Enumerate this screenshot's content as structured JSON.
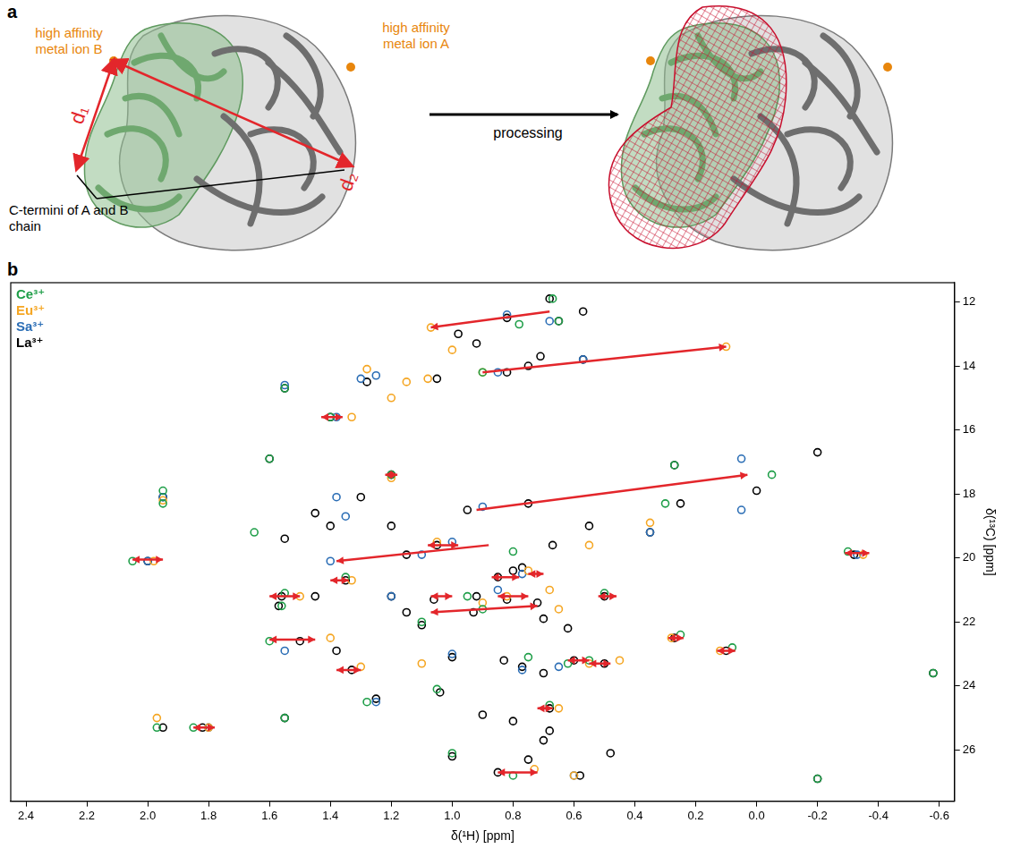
{
  "panel_a": {
    "label": "a",
    "metal_ion_B": "high affinity metal ion B",
    "metal_ion_A": "high affinity metal ion A",
    "distances": [
      "d₁",
      "d₂"
    ],
    "c_termini": "C-termini of A and B chain",
    "process": "processing"
  },
  "panel_b_label": "b",
  "chart_data": {
    "type": "scatter",
    "x_label": "δ(¹H) [ppm]",
    "y_label": "δ(¹³C) [ppm]",
    "xlim": [
      2.45,
      -0.65
    ],
    "ylim": [
      27.6,
      11.4
    ],
    "xticks": [
      2.4,
      2.2,
      {
        "value": 2,
        "label": "2.0"
      },
      1.8,
      1.6,
      1.4,
      1.2,
      {
        "value": 1,
        "label": "1.0"
      },
      0.8,
      0.6,
      0.4,
      0.2,
      {
        "value": 0,
        "label": "0.0"
      },
      -0.2,
      -0.4,
      -0.6
    ],
    "yticks": [
      12,
      14,
      16,
      18,
      20,
      22,
      24,
      26
    ],
    "grid": false,
    "legend": "upper left",
    "series": [
      {
        "name": "Ce³⁺",
        "color": "#1e9e48",
        "marker": "circle",
        "values": [
          [
            0.65,
            12.6
          ],
          [
            0.67,
            11.9
          ],
          [
            0.78,
            12.7
          ],
          [
            0.9,
            14.2
          ],
          [
            1.55,
            14.7
          ],
          [
            1.4,
            15.6
          ],
          [
            1.6,
            16.9
          ],
          [
            1.2,
            17.4
          ],
          [
            0.27,
            17.1
          ],
          [
            -0.05,
            17.4
          ],
          [
            1.95,
            17.9
          ],
          [
            1.65,
            19.2
          ],
          [
            2.05,
            20.1
          ],
          [
            1.35,
            20.6
          ],
          [
            0.8,
            19.8
          ],
          [
            1.55,
            21.1
          ],
          [
            1.56,
            21.5
          ],
          [
            1.6,
            22.6
          ],
          [
            0.95,
            21.2
          ],
          [
            0.9,
            21.6
          ],
          [
            0.5,
            21.1
          ],
          [
            1.1,
            22.0
          ],
          [
            0.75,
            23.1
          ],
          [
            0.55,
            23.2
          ],
          [
            0.68,
            24.6
          ],
          [
            1.85,
            25.3
          ],
          [
            1.97,
            25.3
          ],
          [
            1.0,
            26.1
          ],
          [
            0.8,
            26.8
          ],
          [
            -0.3,
            19.8
          ],
          [
            0.25,
            22.4
          ],
          [
            0.08,
            22.8
          ],
          [
            0.3,
            18.3
          ],
          [
            1.55,
            25.0
          ],
          [
            1.95,
            18.3
          ],
          [
            -0.58,
            23.6
          ],
          [
            -0.2,
            26.9
          ],
          [
            1.05,
            24.1
          ],
          [
            1.28,
            24.5
          ],
          [
            0.62,
            23.3
          ]
        ]
      },
      {
        "name": "Eu³⁺",
        "color": "#f5a623",
        "marker": "circle",
        "values": [
          [
            1.07,
            12.8
          ],
          [
            1.0,
            13.5
          ],
          [
            0.1,
            13.4
          ],
          [
            0.9,
            14.2
          ],
          [
            1.08,
            14.4
          ],
          [
            1.15,
            14.5
          ],
          [
            1.2,
            15.0
          ],
          [
            1.33,
            15.6
          ],
          [
            1.2,
            17.5
          ],
          [
            1.95,
            18.2
          ],
          [
            1.98,
            20.1
          ],
          [
            1.33,
            20.7
          ],
          [
            0.75,
            20.4
          ],
          [
            1.5,
            21.2
          ],
          [
            0.55,
            19.6
          ],
          [
            0.68,
            21.0
          ],
          [
            0.82,
            21.2
          ],
          [
            0.65,
            21.6
          ],
          [
            1.4,
            22.5
          ],
          [
            0.55,
            23.3
          ],
          [
            0.45,
            23.2
          ],
          [
            0.65,
            24.7
          ],
          [
            1.8,
            25.3
          ],
          [
            1.97,
            25.0
          ],
          [
            0.73,
            26.6
          ],
          [
            0.6,
            26.8
          ],
          [
            -0.35,
            19.9
          ],
          [
            0.28,
            22.5
          ],
          [
            0.12,
            22.9
          ],
          [
            1.3,
            23.4
          ],
          [
            1.1,
            23.3
          ],
          [
            0.9,
            21.4
          ],
          [
            0.35,
            18.9
          ],
          [
            1.05,
            19.5
          ],
          [
            1.28,
            14.1
          ]
        ]
      },
      {
        "name": "Sa³⁺",
        "color": "#2a6db5",
        "marker": "circle",
        "values": [
          [
            0.68,
            12.6
          ],
          [
            0.82,
            12.4
          ],
          [
            0.57,
            13.8
          ],
          [
            1.3,
            14.4
          ],
          [
            1.25,
            14.3
          ],
          [
            0.85,
            14.2
          ],
          [
            1.55,
            14.6
          ],
          [
            1.38,
            15.6
          ],
          [
            1.35,
            18.7
          ],
          [
            1.38,
            18.1
          ],
          [
            0.05,
            18.5
          ],
          [
            0.9,
            18.4
          ],
          [
            1.4,
            20.1
          ],
          [
            1.1,
            19.9
          ],
          [
            1.0,
            19.5
          ],
          [
            1.55,
            22.9
          ],
          [
            1.2,
            21.2
          ],
          [
            0.85,
            21.0
          ],
          [
            0.77,
            20.5
          ],
          [
            2.0,
            20.1
          ],
          [
            1.8,
            25.3
          ],
          [
            0.77,
            23.5
          ],
          [
            0.65,
            23.4
          ],
          [
            0.05,
            16.9
          ],
          [
            -0.33,
            19.9
          ],
          [
            0.6,
            26.8
          ],
          [
            1.95,
            18.1
          ],
          [
            0.35,
            19.2
          ],
          [
            1.0,
            23.0
          ],
          [
            1.25,
            24.5
          ]
        ]
      },
      {
        "name": "La³⁺",
        "color": "#000000",
        "marker": "circle",
        "values": [
          [
            0.68,
            11.9
          ],
          [
            0.65,
            12.6
          ],
          [
            0.82,
            12.5
          ],
          [
            0.57,
            12.3
          ],
          [
            0.98,
            13.0
          ],
          [
            0.92,
            13.3
          ],
          [
            0.71,
            13.7
          ],
          [
            0.57,
            13.8
          ],
          [
            0.82,
            14.2
          ],
          [
            0.75,
            14.0
          ],
          [
            1.28,
            14.5
          ],
          [
            1.05,
            14.4
          ],
          [
            1.55,
            14.7
          ],
          [
            1.4,
            15.6
          ],
          [
            1.6,
            16.9
          ],
          [
            1.2,
            17.4
          ],
          [
            0.27,
            17.1
          ],
          [
            -0.2,
            16.7
          ],
          [
            0.0,
            17.9
          ],
          [
            1.95,
            18.1
          ],
          [
            1.3,
            18.1
          ],
          [
            1.45,
            18.6
          ],
          [
            1.4,
            19.0
          ],
          [
            1.2,
            19.0
          ],
          [
            0.95,
            18.5
          ],
          [
            0.75,
            18.3
          ],
          [
            0.55,
            19.0
          ],
          [
            0.35,
            19.2
          ],
          [
            0.25,
            18.3
          ],
          [
            1.55,
            19.4
          ],
          [
            1.15,
            19.9
          ],
          [
            1.05,
            19.6
          ],
          [
            0.67,
            19.6
          ],
          [
            2.0,
            20.1
          ],
          [
            1.35,
            20.7
          ],
          [
            0.85,
            20.6
          ],
          [
            0.8,
            20.4
          ],
          [
            0.77,
            20.3
          ],
          [
            -0.32,
            19.9
          ],
          [
            1.56,
            21.2
          ],
          [
            1.45,
            21.2
          ],
          [
            1.2,
            21.2
          ],
          [
            1.06,
            21.3
          ],
          [
            0.92,
            21.2
          ],
          [
            0.82,
            21.3
          ],
          [
            0.72,
            21.4
          ],
          [
            0.5,
            21.2
          ],
          [
            1.57,
            21.5
          ],
          [
            0.93,
            21.7
          ],
          [
            0.7,
            21.9
          ],
          [
            0.62,
            22.2
          ],
          [
            1.5,
            22.6
          ],
          [
            1.38,
            22.9
          ],
          [
            0.27,
            22.5
          ],
          [
            0.1,
            22.9
          ],
          [
            1.0,
            23.1
          ],
          [
            0.83,
            23.2
          ],
          [
            0.77,
            23.4
          ],
          [
            0.6,
            23.2
          ],
          [
            0.5,
            23.3
          ],
          [
            1.33,
            23.5
          ],
          [
            0.7,
            23.6
          ],
          [
            -0.58,
            23.6
          ],
          [
            1.25,
            24.4
          ],
          [
            1.04,
            24.2
          ],
          [
            0.68,
            24.7
          ],
          [
            1.55,
            25.0
          ],
          [
            0.9,
            24.9
          ],
          [
            0.8,
            25.1
          ],
          [
            1.95,
            25.3
          ],
          [
            1.82,
            25.3
          ],
          [
            0.68,
            25.4
          ],
          [
            0.7,
            25.7
          ],
          [
            0.48,
            26.1
          ],
          [
            1.0,
            26.2
          ],
          [
            0.75,
            26.3
          ],
          [
            0.85,
            26.7
          ],
          [
            0.58,
            26.8
          ],
          [
            -0.2,
            26.9
          ],
          [
            1.15,
            21.7
          ],
          [
            1.1,
            22.1
          ]
        ]
      }
    ],
    "arrows": [
      {
        "from": [
          0.68,
          12.3
        ],
        "to": [
          1.07,
          12.8
        ]
      },
      {
        "from": [
          0.9,
          14.2
        ],
        "to": [
          0.1,
          13.4
        ]
      },
      {
        "from": [
          0.92,
          18.5
        ],
        "to": [
          0.03,
          17.4
        ]
      },
      {
        "from": [
          0.88,
          19.6
        ],
        "to": [
          1.38,
          20.1
        ]
      }
    ],
    "double_arrows": [
      {
        "from": [
          1.07,
          21.7
        ],
        "to": [
          0.72,
          21.5
        ]
      },
      {
        "from": [
          2.05,
          20.05
        ],
        "to": [
          1.95,
          20.05
        ]
      },
      {
        "from": [
          1.6,
          21.2
        ],
        "to": [
          1.5,
          21.2
        ]
      },
      {
        "from": [
          1.6,
          22.55
        ],
        "to": [
          1.45,
          22.55
        ]
      },
      {
        "from": [
          1.38,
          23.5
        ],
        "to": [
          1.3,
          23.5
        ]
      },
      {
        "from": [
          1.85,
          25.3
        ],
        "to": [
          1.78,
          25.3
        ]
      },
      {
        "from": [
          1.4,
          20.7
        ],
        "to": [
          1.34,
          20.7
        ]
      },
      {
        "from": [
          1.43,
          15.6
        ],
        "to": [
          1.36,
          15.6
        ]
      },
      {
        "from": [
          1.22,
          17.4
        ],
        "to": [
          1.18,
          17.4
        ]
      },
      {
        "from": [
          1.08,
          19.6
        ],
        "to": [
          0.98,
          19.6
        ]
      },
      {
        "from": [
          1.07,
          21.2
        ],
        "to": [
          1.0,
          21.2
        ]
      },
      {
        "from": [
          0.85,
          21.2
        ],
        "to": [
          0.75,
          21.2
        ]
      },
      {
        "from": [
          0.87,
          20.6
        ],
        "to": [
          0.78,
          20.6
        ]
      },
      {
        "from": [
          0.75,
          20.5
        ],
        "to": [
          0.7,
          20.5
        ]
      },
      {
        "from": [
          0.72,
          24.7
        ],
        "to": [
          0.67,
          24.7
        ]
      },
      {
        "from": [
          0.62,
          23.2
        ],
        "to": [
          0.55,
          23.2
        ]
      },
      {
        "from": [
          0.55,
          23.3
        ],
        "to": [
          0.48,
          23.3
        ]
      },
      {
        "from": [
          0.52,
          21.2
        ],
        "to": [
          0.46,
          21.2
        ]
      },
      {
        "from": [
          0.29,
          22.5
        ],
        "to": [
          0.24,
          22.5
        ]
      },
      {
        "from": [
          0.13,
          22.9
        ],
        "to": [
          0.07,
          22.9
        ]
      },
      {
        "from": [
          -0.29,
          19.85
        ],
        "to": [
          -0.37,
          19.85
        ]
      },
      {
        "from": [
          0.85,
          26.7
        ],
        "to": [
          0.72,
          26.7
        ]
      }
    ]
  }
}
